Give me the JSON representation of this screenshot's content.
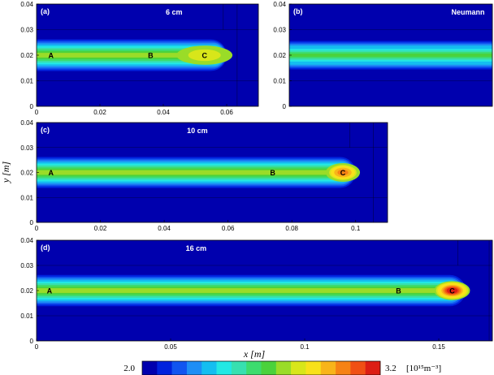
{
  "chart_data": {
    "type": "heatmap",
    "xlabel": "x [m]",
    "ylabel": "y [m]",
    "colorbar": {
      "min": 2.0,
      "max": 3.2,
      "min_label": "2.0",
      "max_label": "3.2",
      "unit_label": "[10¹⁵m⁻³]",
      "levels": 16,
      "colors": [
        "#0000ae",
        "#0022dd",
        "#1155f0",
        "#1e8ef5",
        "#14bef0",
        "#22e8e4",
        "#37e0b0",
        "#3ddc6e",
        "#4bd23c",
        "#9adc28",
        "#d8e61a",
        "#f8e11a",
        "#f8b41a",
        "#f68214",
        "#f05014",
        "#dc1e14"
      ]
    },
    "panels": [
      {
        "label": "(a)",
        "title": "6 cm",
        "xlim": [
          0,
          0.07
        ],
        "ylim": [
          0,
          0.04
        ],
        "xticks": [
          "0",
          "0.02",
          "0.04",
          "0.06"
        ],
        "xtick_values": [
          0,
          0.02,
          0.04,
          0.06
        ],
        "yticks": [
          "0",
          "0.01",
          "0.02",
          "0.03",
          "0.04"
        ],
        "ytick_values": [
          0,
          0.01,
          0.02,
          0.03,
          0.04
        ],
        "beam_end": 0.06,
        "beam_peak": 2.8,
        "points": [
          {
            "name": "A",
            "x": 0.003,
            "y": 0.02
          },
          {
            "name": "B",
            "x": 0.036,
            "y": 0.02
          },
          {
            "name": "C",
            "x": 0.053,
            "y": 0.02
          }
        ]
      },
      {
        "label": "(b)",
        "title": "Neumann",
        "xlim": [
          0,
          0.07
        ],
        "ylim": [
          0,
          0.04
        ],
        "xticks": [],
        "xtick_values": [],
        "yticks": [
          "0",
          "0.01",
          "0.02",
          "0.03",
          "0.04"
        ],
        "ytick_values": [
          0,
          0.01,
          0.02,
          0.03,
          0.04
        ],
        "beam_end": null,
        "beam_peak": 2.6,
        "points": []
      },
      {
        "label": "(c)",
        "title": "10 cm",
        "xlim": [
          0,
          0.11
        ],
        "ylim": [
          0,
          0.04
        ],
        "xticks": [
          "0",
          "0.02",
          "0.04",
          "0.06",
          "0.08",
          "0.1"
        ],
        "xtick_values": [
          0,
          0.02,
          0.04,
          0.06,
          0.08,
          0.1
        ],
        "yticks": [
          "0",
          "0.01",
          "0.02",
          "0.03",
          "0.04"
        ],
        "ytick_values": [
          0,
          0.01,
          0.02,
          0.03,
          0.04
        ],
        "beam_end": 0.1,
        "beam_peak": 3.0,
        "points": [
          {
            "name": "A",
            "x": 0.003,
            "y": 0.02
          },
          {
            "name": "B",
            "x": 0.074,
            "y": 0.02
          },
          {
            "name": "C",
            "x": 0.096,
            "y": 0.02
          }
        ]
      },
      {
        "label": "(d)",
        "title": "16 cm",
        "xlim": [
          0,
          0.17
        ],
        "ylim": [
          0,
          0.04
        ],
        "xticks": [
          "0",
          "0.05",
          "0.1",
          "0.15"
        ],
        "xtick_values": [
          0,
          0.05,
          0.1,
          0.15
        ],
        "yticks": [
          "0",
          "0.01",
          "0.02",
          "0.03",
          "0.04"
        ],
        "ytick_values": [
          0,
          0.01,
          0.02,
          0.03,
          0.04
        ],
        "beam_end": 0.16,
        "beam_peak": 3.15,
        "points": [
          {
            "name": "A",
            "x": 0.003,
            "y": 0.02
          },
          {
            "name": "B",
            "x": 0.135,
            "y": 0.02
          },
          {
            "name": "C",
            "x": 0.155,
            "y": 0.02
          }
        ]
      }
    ]
  }
}
